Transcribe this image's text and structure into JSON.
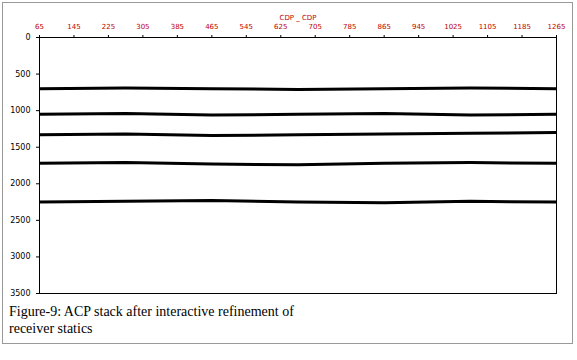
{
  "chart_data": {
    "type": "line",
    "title": "CDP _ CDP",
    "x": [
      65,
      265,
      465,
      665,
      865,
      1065,
      1265
    ],
    "series": [
      {
        "color": "#000000",
        "values": [
          700,
          690,
          700,
          710,
          700,
          690,
          700
        ]
      },
      {
        "color": "#000000",
        "values": [
          1050,
          1040,
          1060,
          1050,
          1040,
          1060,
          1050
        ]
      },
      {
        "color": "#000000",
        "values": [
          1330,
          1320,
          1340,
          1330,
          1320,
          1310,
          1300
        ]
      },
      {
        "color": "#000000",
        "values": [
          1720,
          1710,
          1730,
          1740,
          1720,
          1710,
          1720
        ]
      },
      {
        "color": "#000000",
        "values": [
          2250,
          2240,
          2230,
          2250,
          2260,
          2240,
          2250
        ]
      }
    ],
    "xlim": [
      65,
      1265
    ],
    "xticks": [
      65,
      145,
      225,
      305,
      385,
      465,
      545,
      625,
      705,
      785,
      865,
      945,
      1025,
      1105,
      1185,
      1265
    ],
    "ylim": [
      0,
      3500
    ],
    "yticks": [
      0,
      500,
      1000,
      1500,
      2000,
      2500,
      3000,
      3500
    ],
    "grid": false
  },
  "caption": "Figure-9: ACP stack after interactive refinement of receiver statics"
}
